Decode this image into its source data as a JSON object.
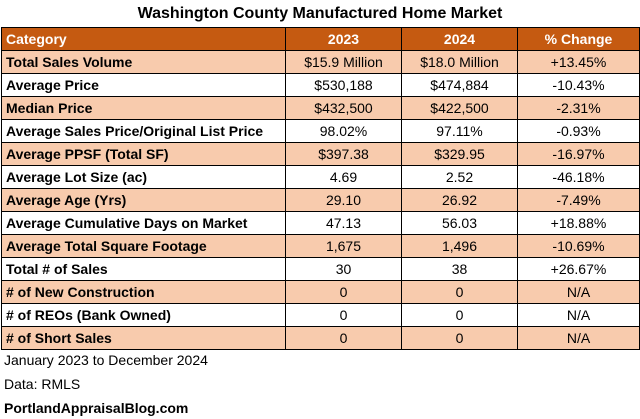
{
  "title": "Washington County Manufactured Home Market",
  "table": {
    "headers": [
      "Category",
      "2023",
      "2024",
      "% Change"
    ],
    "rows": [
      {
        "label": "Total Sales Volume",
        "v2023": "$15.9 Million",
        "v2024": "$18.0 Million",
        "change": "+13.45%"
      },
      {
        "label": "Average Price",
        "v2023": "$530,188",
        "v2024": "$474,884",
        "change": "-10.43%"
      },
      {
        "label": "Median Price",
        "v2023": "$432,500",
        "v2024": "$422,500",
        "change": "-2.31%"
      },
      {
        "label": "Average Sales Price/Original List Price",
        "v2023": "98.02%",
        "v2024": "97.11%",
        "change": "-0.93%"
      },
      {
        "label": "Average PPSF (Total SF)",
        "v2023": "$397.38",
        "v2024": "$329.95",
        "change": "-16.97%"
      },
      {
        "label": "Average Lot Size (ac)",
        "v2023": "4.69",
        "v2024": "2.52",
        "change": "-46.18%"
      },
      {
        "label": "Average Age (Yrs)",
        "v2023": "29.10",
        "v2024": "26.92",
        "change": "-7.49%"
      },
      {
        "label": "Average Cumulative Days on Market",
        "v2023": "47.13",
        "v2024": "56.03",
        "change": "+18.88%"
      },
      {
        "label": "Average Total Square Footage",
        "v2023": "1,675",
        "v2024": "1,496",
        "change": "-10.69%"
      },
      {
        "label": "Total # of Sales",
        "v2023": "30",
        "v2024": "38",
        "change": "+26.67%"
      },
      {
        "label": "# of New Construction",
        "v2023": "0",
        "v2024": "0",
        "change": "N/A"
      },
      {
        "label": "# of REOs (Bank Owned)",
        "v2023": "0",
        "v2024": "0",
        "change": "N/A"
      },
      {
        "label": "# of Short Sales",
        "v2023": "0",
        "v2024": "0",
        "change": "N/A"
      }
    ]
  },
  "footer": {
    "date_range": "January 2023 to December 2024",
    "source": "Data: RMLS",
    "site": "PortlandAppraisalBlog.com"
  },
  "colors": {
    "header_bg": "#c55a11",
    "shade_bg": "#f8cbad"
  }
}
